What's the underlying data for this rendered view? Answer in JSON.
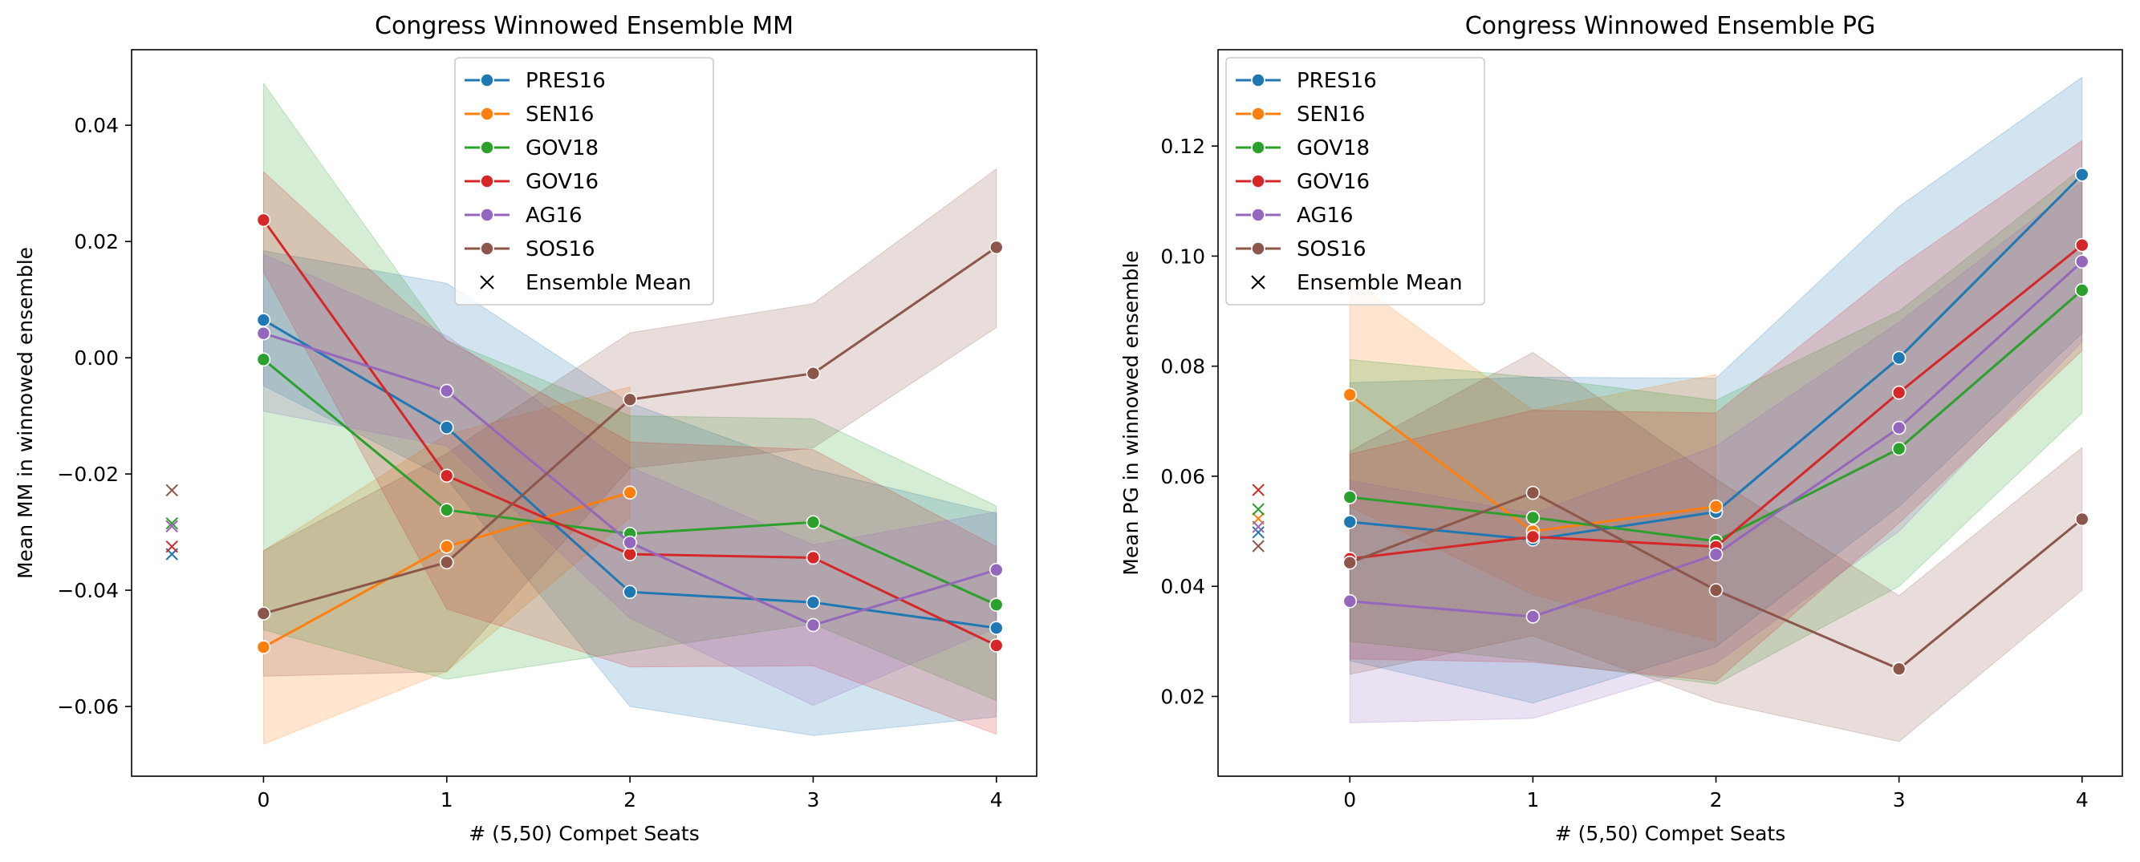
{
  "chart_data": [
    {
      "type": "line",
      "title": "Congress Winnowed Ensemble MM",
      "xlabel": "# (5,50) Compet Seats",
      "ylabel": "Mean MM in winnowed ensemble",
      "x": [
        0,
        1,
        2,
        3,
        4
      ],
      "xlim": [
        -0.72,
        4.22
      ],
      "ylim": [
        -0.072,
        0.053
      ],
      "xticks": [
        0,
        1,
        2,
        3,
        4
      ],
      "yticks": [
        0.04,
        0.02,
        0.0,
        -0.02,
        -0.04,
        -0.06
      ],
      "ytick_labels": [
        "0.04",
        "0.02",
        "0.00",
        "−0.02",
        "−0.04",
        "−0.06"
      ],
      "legend_position": "upper-center",
      "ensemble_mean_x": -0.5,
      "series": [
        {
          "name": "PRES16",
          "color": "#1f77b4",
          "x": [
            0,
            1,
            2,
            3,
            4
          ],
          "values": [
            0.0065,
            -0.012,
            -0.0403,
            -0.0421,
            -0.0465
          ],
          "lower": [
            -0.0048,
            -0.0208,
            -0.06,
            -0.065,
            -0.0618
          ],
          "upper": [
            0.0184,
            0.0128,
            -0.0078,
            -0.0192,
            -0.0268
          ],
          "ensemble_mean": -0.0338
        },
        {
          "name": "SEN16",
          "color": "#ff7f0e",
          "x": [
            0,
            1,
            2
          ],
          "values": [
            -0.0498,
            -0.0325,
            -0.0232
          ],
          "lower": [
            -0.0665,
            -0.054,
            -0.0275
          ],
          "upper": [
            -0.0332,
            -0.0132,
            -0.005
          ],
          "ensemble_mean": -0.029
        },
        {
          "name": "GOV18",
          "color": "#2ca02c",
          "x": [
            0,
            1,
            2,
            3,
            4
          ],
          "values": [
            -0.0003,
            -0.0262,
            -0.0303,
            -0.0283,
            -0.0425
          ],
          "lower": [
            -0.0468,
            -0.0553,
            -0.0505,
            -0.0458,
            -0.059
          ],
          "upper": [
            0.0472,
            0.003,
            -0.01,
            -0.0105,
            -0.0255
          ],
          "ensemble_mean": -0.0285
        },
        {
          "name": "GOV16",
          "color": "#d62728",
          "x": [
            0,
            1,
            2,
            3,
            4
          ],
          "values": [
            0.0237,
            -0.0203,
            -0.0338,
            -0.0344,
            -0.0495
          ],
          "lower": [
            0.0148,
            -0.0432,
            -0.0532,
            -0.053,
            -0.0648
          ],
          "upper": [
            0.032,
            0.003,
            -0.0145,
            -0.0158,
            -0.0325
          ],
          "ensemble_mean": -0.0325
        },
        {
          "name": "AG16",
          "color": "#9467bd",
          "x": [
            0,
            1,
            2,
            3,
            4
          ],
          "values": [
            0.0042,
            -0.0057,
            -0.0318,
            -0.046,
            -0.0365
          ],
          "lower": [
            -0.0092,
            -0.0152,
            -0.0448,
            -0.0598,
            -0.0465
          ],
          "upper": [
            0.0178,
            0.0038,
            -0.0188,
            -0.0322,
            -0.0265
          ],
          "ensemble_mean": -0.029
        },
        {
          "name": "SOS16",
          "color": "#8c564b",
          "x": [
            0,
            1,
            2,
            3,
            4
          ],
          "values": [
            -0.044,
            -0.0352,
            -0.0072,
            -0.0027,
            0.019
          ],
          "lower": [
            -0.0548,
            -0.054,
            -0.019,
            -0.0155,
            0.0052
          ],
          "upper": [
            -0.0332,
            -0.0165,
            0.0043,
            0.0093,
            0.0325
          ],
          "ensemble_mean": -0.0228
        }
      ],
      "legend_extra": "Ensemble Mean"
    },
    {
      "type": "line",
      "title": "Congress Winnowed Ensemble PG",
      "xlabel": "# (5,50) Compet Seats",
      "ylabel": "Mean PG in winnowed ensemble",
      "x": [
        0,
        1,
        2,
        3,
        4
      ],
      "xlim": [
        -0.72,
        4.22
      ],
      "ylim": [
        0.0055,
        0.1375
      ],
      "xticks": [
        0,
        1,
        2,
        3,
        4
      ],
      "yticks": [
        0.12,
        0.1,
        0.08,
        0.06,
        0.04,
        0.02
      ],
      "ytick_labels": [
        "0.12",
        "0.10",
        "0.08",
        "0.06",
        "0.04",
        "0.02"
      ],
      "legend_position": "upper-left",
      "ensemble_mean_x": -0.5,
      "series": [
        {
          "name": "PRES16",
          "color": "#1f77b4",
          "x": [
            0,
            1,
            2,
            3,
            4
          ],
          "values": [
            0.0517,
            0.0485,
            0.0535,
            0.0815,
            0.1148
          ],
          "lower": [
            0.0265,
            0.0188,
            0.029,
            0.0545,
            0.086
          ],
          "upper": [
            0.077,
            0.078,
            0.0778,
            0.109,
            0.1325
          ],
          "ensemble_mean": 0.0498
        },
        {
          "name": "SEN16",
          "color": "#ff7f0e",
          "x": [
            0,
            1,
            2
          ],
          "values": [
            0.0748,
            0.05,
            0.0545
          ],
          "lower": [
            0.0545,
            0.0385,
            0.03
          ],
          "upper": [
            0.096,
            0.072,
            0.0785
          ],
          "ensemble_mean": 0.0523
        },
        {
          "name": "GOV18",
          "color": "#2ca02c",
          "x": [
            0,
            1,
            2,
            3,
            4
          ],
          "values": [
            0.0562,
            0.0525,
            0.0482,
            0.065,
            0.0938
          ],
          "lower": [
            0.03,
            0.0265,
            0.0222,
            0.04,
            0.0715
          ],
          "upper": [
            0.0812,
            0.078,
            0.0738,
            0.09,
            0.116
          ],
          "ensemble_mean": 0.054
        },
        {
          "name": "GOV16",
          "color": "#d62728",
          "x": [
            0,
            1,
            2,
            3,
            4
          ],
          "values": [
            0.045,
            0.049,
            0.0472,
            0.0752,
            0.102
          ],
          "lower": [
            0.0268,
            0.0262,
            0.0228,
            0.0515,
            0.0828
          ],
          "upper": [
            0.064,
            0.072,
            0.0715,
            0.098,
            0.121
          ],
          "ensemble_mean": 0.0575
        },
        {
          "name": "AG16",
          "color": "#9467bd",
          "x": [
            0,
            1,
            2,
            3,
            4
          ],
          "values": [
            0.0373,
            0.0345,
            0.0458,
            0.0688,
            0.099
          ],
          "lower": [
            0.0152,
            0.016,
            0.026,
            0.05,
            0.0845
          ],
          "upper": [
            0.0592,
            0.0532,
            0.0655,
            0.088,
            0.1135
          ],
          "ensemble_mean": 0.0508
        },
        {
          "name": "SOS16",
          "color": "#8c564b",
          "x": [
            0,
            1,
            2,
            3,
            4
          ],
          "values": [
            0.0443,
            0.057,
            0.0393,
            0.025,
            0.0522
          ],
          "lower": [
            0.024,
            0.031,
            0.019,
            0.0118,
            0.0393
          ],
          "upper": [
            0.0645,
            0.0825,
            0.0595,
            0.0383,
            0.0652
          ],
          "ensemble_mean": 0.0473
        }
      ],
      "legend_extra": "Ensemble Mean"
    }
  ]
}
